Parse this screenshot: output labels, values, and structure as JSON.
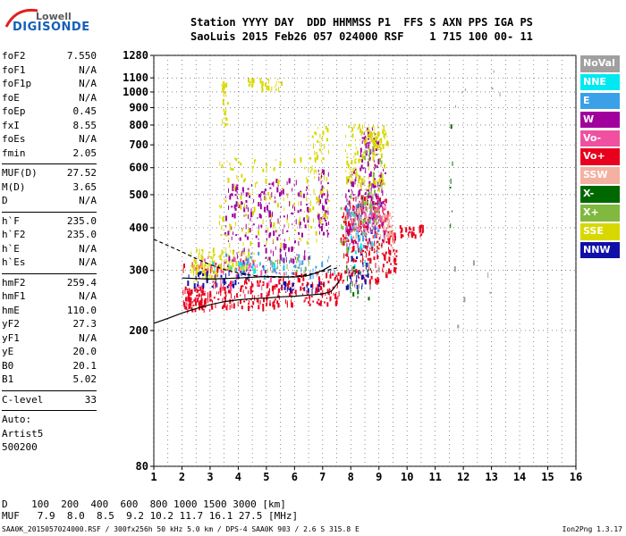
{
  "logo": {
    "top": "Lowell",
    "bottom": "DIGISONDE"
  },
  "header": {
    "line1": "Station YYYY DAY  DDD HHMMSS P1  FFS S AXN PPS IGA PS",
    "line2": "SaoLuis 2015 Feb26 057 024000 RSF    1 715 100 00- 11"
  },
  "params": [
    [
      [
        "foF2",
        "7.550"
      ],
      [
        "foF1",
        "N/A"
      ],
      [
        "foF1p",
        "N/A"
      ],
      [
        "foE",
        "N/A"
      ],
      [
        "foEp",
        "0.45"
      ],
      [
        "fxI",
        "8.55"
      ],
      [
        "foEs",
        "N/A"
      ],
      [
        "fmin",
        "2.05"
      ]
    ],
    [
      [
        "MUF(D)",
        "27.52"
      ],
      [
        "M(D)",
        "3.65"
      ],
      [
        "D",
        "N/A"
      ]
    ],
    [
      [
        "h`F",
        "235.0"
      ],
      [
        "h`F2",
        "235.0"
      ],
      [
        "h`E",
        "N/A"
      ],
      [
        "h`Es",
        "N/A"
      ]
    ],
    [
      [
        "hmF2",
        "259.4"
      ],
      [
        "hmF1",
        "N/A"
      ],
      [
        "hmE",
        "110.0"
      ],
      [
        "yF2",
        "27.3"
      ],
      [
        "yF1",
        "N/A"
      ],
      [
        "yE",
        "20.0"
      ],
      [
        "B0",
        "20.1"
      ],
      [
        "B1",
        "5.02"
      ]
    ],
    [
      [
        "C-level",
        "33"
      ]
    ],
    [
      [
        "Auto:",
        ""
      ],
      [
        "Artist5",
        ""
      ],
      [
        "500200",
        ""
      ]
    ]
  ],
  "legend": [
    {
      "label": "NoVal",
      "color": "#a0a0a0"
    },
    {
      "label": "NNE",
      "color": "#00e8f0"
    },
    {
      "label": "E",
      "color": "#3aa0e8"
    },
    {
      "label": "W",
      "color": "#a0009c"
    },
    {
      "label": "Vo-",
      "color": "#f050a0"
    },
    {
      "label": "Vo+",
      "color": "#e8001c"
    },
    {
      "label": "SSW",
      "color": "#f4b0a0"
    },
    {
      "label": "X-",
      "color": "#006800"
    },
    {
      "label": "X+",
      "color": "#80b840"
    },
    {
      "label": "SSE",
      "color": "#d8d800"
    },
    {
      "label": "NNW",
      "color": "#1010a8"
    }
  ],
  "bottom": {
    "line1": "D    100  200  400  600  800 1000 1500 3000 [km]",
    "line2": "MUF   7.9  8.0  8.5  9.2 10.2 11.7 16.1 27.5 [MHz]"
  },
  "footer": {
    "left": "SAA0K_2015057024000.RSF / 300fx256h 50 kHz 5.0 km / DPS-4 SAA0K 903 / 2.6 S 315.8 E",
    "right": "Ion2Png 1.3.17"
  },
  "chart_data": {
    "type": "scatter",
    "title": "",
    "xlabel": "",
    "ylabel": "",
    "x_ticks": [
      1,
      2,
      3,
      4,
      5,
      6,
      7,
      8,
      9,
      10,
      11,
      12,
      13,
      14,
      15,
      16
    ],
    "y_ticks": [
      80,
      200,
      300,
      400,
      500,
      600,
      700,
      800,
      900,
      1000,
      1100,
      1280
    ],
    "xlim": [
      1,
      16
    ],
    "ylim": [
      80,
      1280
    ],
    "y_scale": "log",
    "grid": true,
    "x_unit": "MHz",
    "y_unit": "km",
    "series": [
      {
        "color_key": "Vo+",
        "blocks": [
          [
            2.0,
            3.0,
            230,
            270,
            90
          ],
          [
            3.0,
            5.5,
            235,
            285,
            140
          ],
          [
            5.5,
            7.6,
            240,
            300,
            120
          ],
          [
            7.6,
            9.3,
            280,
            500,
            230
          ],
          [
            9.3,
            9.6,
            290,
            410,
            40
          ],
          [
            9.7,
            10.6,
            380,
            410,
            35
          ],
          [
            2.0,
            3.5,
            300,
            320,
            20
          ]
        ]
      },
      {
        "color_key": "W",
        "blocks": [
          [
            3.5,
            5.0,
            300,
            540,
            110
          ],
          [
            5.0,
            6.5,
            320,
            560,
            110
          ],
          [
            6.8,
            7.2,
            380,
            600,
            50
          ],
          [
            7.8,
            9.2,
            360,
            600,
            170
          ],
          [
            8.3,
            9.0,
            600,
            800,
            50
          ]
        ]
      },
      {
        "color_key": "Vo-",
        "blocks": [
          [
            2.5,
            5.5,
            270,
            330,
            60
          ],
          [
            7.8,
            9.0,
            400,
            480,
            60
          ],
          [
            9.0,
            9.3,
            420,
            470,
            10
          ]
        ]
      },
      {
        "color_key": "SSE",
        "blocks": [
          [
            2.3,
            4.6,
            300,
            350,
            80
          ],
          [
            3.3,
            6.8,
            360,
            650,
            130
          ],
          [
            3.4,
            3.6,
            800,
            1080,
            28
          ],
          [
            4.3,
            5.6,
            1020,
            1100,
            28
          ],
          [
            6.6,
            7.2,
            420,
            800,
            50
          ],
          [
            7.8,
            9.2,
            520,
            810,
            110
          ],
          [
            8.5,
            9.3,
            700,
            800,
            45
          ],
          [
            2.4,
            3.2,
            280,
            320,
            40
          ]
        ]
      },
      {
        "color_key": "E",
        "blocks": [
          [
            3.5,
            7.5,
            290,
            340,
            50
          ],
          [
            7.8,
            9.0,
            310,
            480,
            35
          ]
        ]
      },
      {
        "color_key": "NNW",
        "blocks": [
          [
            2.0,
            4.5,
            270,
            300,
            40
          ],
          [
            7.8,
            8.6,
            270,
            340,
            30
          ],
          [
            5.5,
            7.0,
            265,
            280,
            20
          ]
        ]
      },
      {
        "color_key": "NNE",
        "blocks": [
          [
            3.0,
            6.0,
            300,
            320,
            20
          ],
          [
            7.8,
            8.8,
            300,
            450,
            20
          ]
        ]
      },
      {
        "color_key": "X+",
        "blocks": [
          [
            7.6,
            9.0,
            350,
            500,
            40
          ],
          [
            5.0,
            6.5,
            300,
            330,
            20
          ],
          [
            8.4,
            9.1,
            420,
            700,
            30
          ]
        ]
      },
      {
        "color_key": "X-",
        "blocks": [
          [
            7.8,
            8.8,
            250,
            320,
            15
          ],
          [
            11.5,
            11.6,
            210,
            950,
            6
          ]
        ]
      },
      {
        "color_key": "SSW",
        "blocks": [
          [
            7.8,
            9.0,
            380,
            460,
            20
          ],
          [
            9.0,
            9.5,
            350,
            450,
            12
          ],
          [
            9.1,
            9.5,
            380,
            440,
            20
          ]
        ]
      },
      {
        "color_key": "NoVal",
        "blocks": [
          [
            8.0,
            9.0,
            270,
            450,
            20
          ],
          [
            11.0,
            13.5,
            180,
            1250,
            12
          ]
        ]
      }
    ],
    "traces": [
      {
        "name": "virtual",
        "points": [
          [
            1.0,
            210
          ],
          [
            1.5,
            217
          ],
          [
            2.0,
            225
          ],
          [
            2.5,
            232
          ],
          [
            3.0,
            238
          ],
          [
            3.5,
            243
          ],
          [
            4.0,
            246
          ],
          [
            4.5,
            248
          ],
          [
            5.0,
            249
          ],
          [
            5.5,
            251
          ],
          [
            6.0,
            252
          ],
          [
            6.5,
            254
          ],
          [
            7.0,
            256
          ],
          [
            7.3,
            260
          ],
          [
            7.6,
            280
          ]
        ]
      },
      {
        "name": "virtual-dashed",
        "points": [
          [
            1.0,
            370
          ],
          [
            1.5,
            355
          ],
          [
            2.0,
            340
          ],
          [
            2.5,
            325
          ],
          [
            3.0,
            312
          ],
          [
            3.5,
            302
          ],
          [
            4.0,
            295
          ],
          [
            4.5,
            290
          ],
          [
            5.0,
            287
          ],
          [
            5.5,
            286
          ],
          [
            6.0,
            288
          ],
          [
            6.5,
            292
          ],
          [
            7.0,
            298
          ],
          [
            7.5,
            305
          ],
          [
            7.6,
            310
          ]
        ]
      },
      {
        "name": "profile",
        "points": [
          [
            2.0,
            285
          ],
          [
            3.0,
            283
          ],
          [
            4.0,
            285
          ],
          [
            5.0,
            288
          ],
          [
            6.0,
            287
          ],
          [
            6.5,
            290
          ],
          [
            7.0,
            300
          ],
          [
            7.3,
            310
          ]
        ]
      }
    ]
  }
}
